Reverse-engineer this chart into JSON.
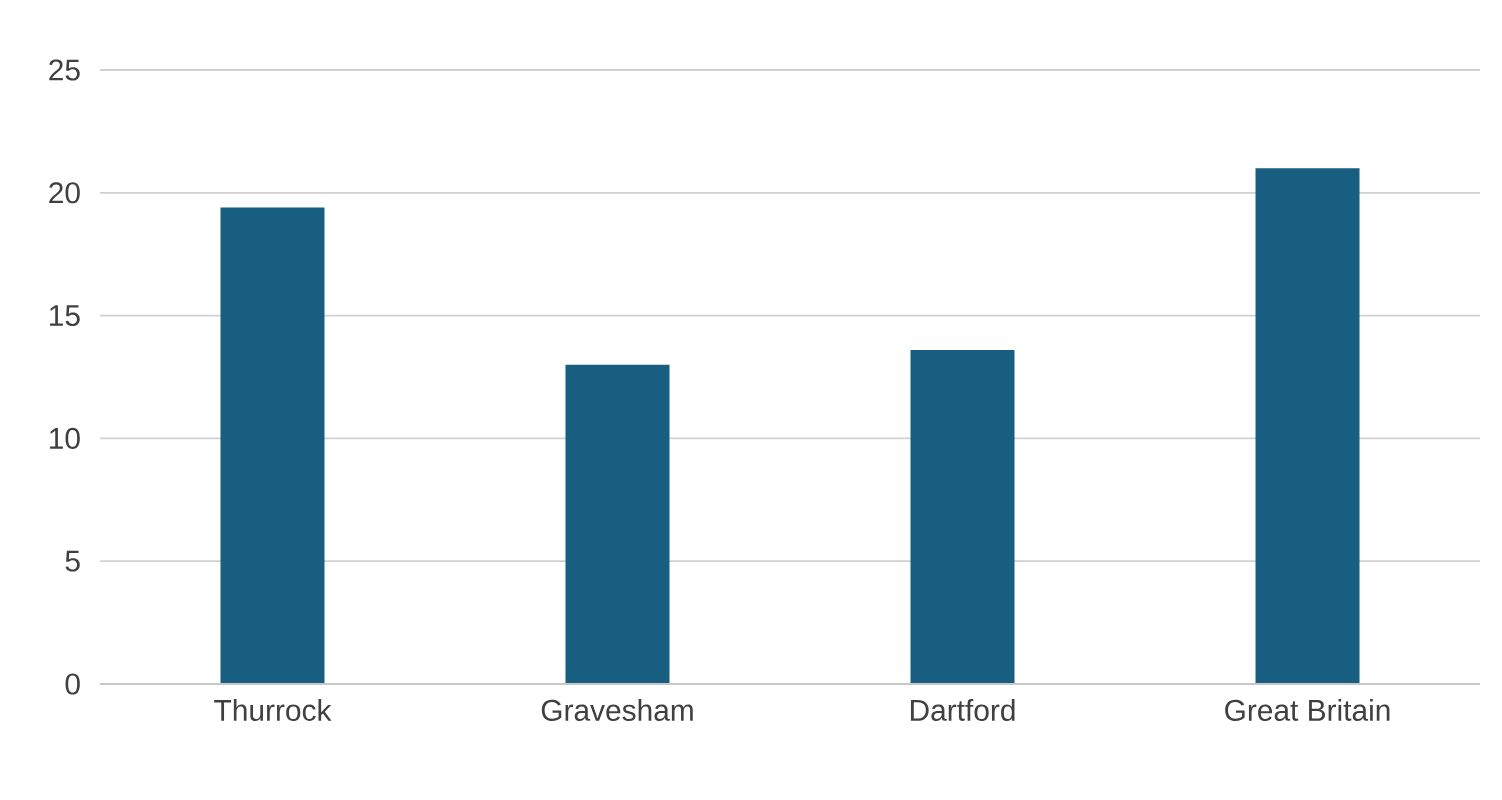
{
  "chart_data": {
    "type": "bar",
    "categories": [
      "Thurrock",
      "Gravesham",
      "Dartford",
      "Great Britain"
    ],
    "values": [
      19.4,
      13.0,
      13.6,
      21.0
    ],
    "color": "#175e80",
    "ylim": [
      0,
      25
    ],
    "yticks": [
      0,
      5,
      10,
      15,
      20,
      25
    ],
    "grid": "y"
  }
}
